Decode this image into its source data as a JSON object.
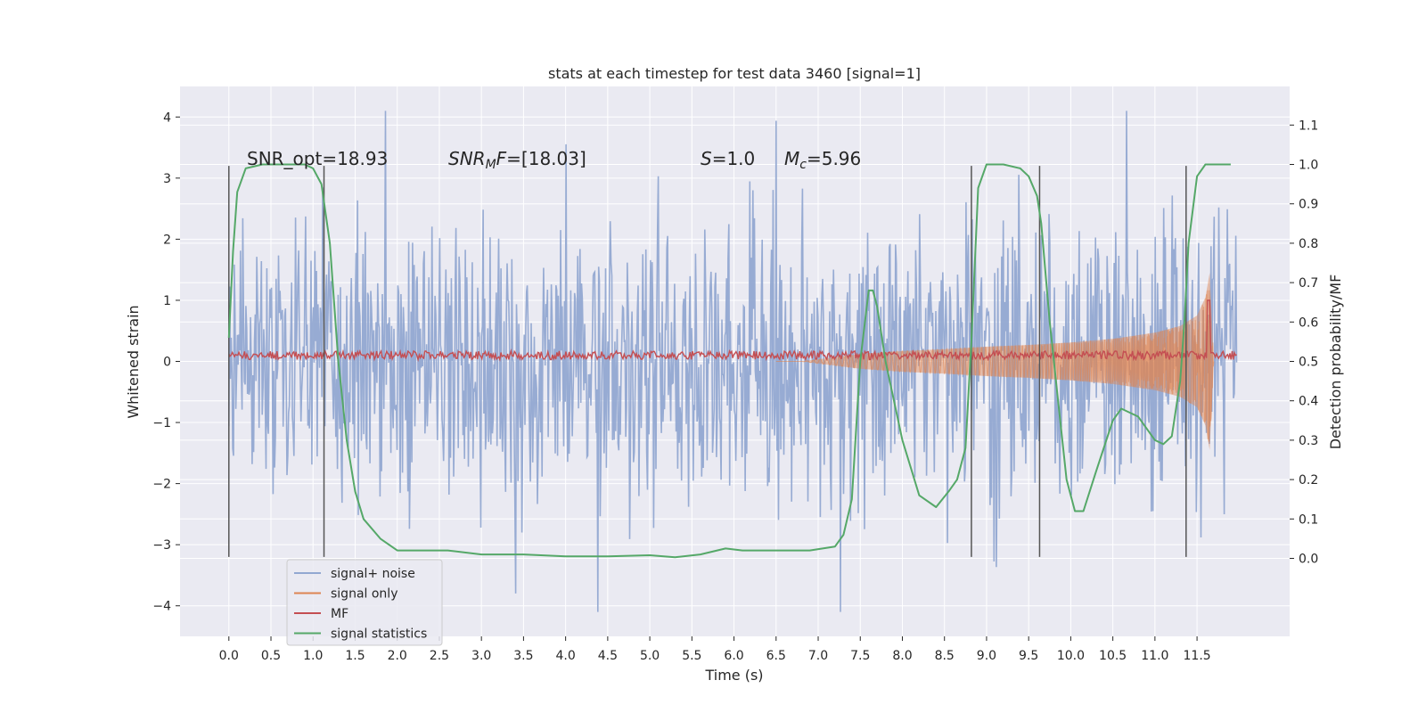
{
  "chart_data": {
    "type": "line",
    "title": "stats at each timestep for test data 3460 [signal=1]",
    "xlabel": "Time (s)",
    "ylabel_left": "Whitened strain",
    "ylabel_right": "Detection probability/MF",
    "xlim": [
      -0.58,
      12.6
    ],
    "ylim_left": [
      -4.5,
      4.5
    ],
    "ylim_right": [
      -0.198,
      1.198
    ],
    "x_ticks": [
      "0.0",
      "0.5",
      "1.0",
      "1.5",
      "2.0",
      "2.5",
      "3.0",
      "3.5",
      "4.0",
      "4.5",
      "5.0",
      "5.5",
      "6.0",
      "6.5",
      "7.0",
      "7.5",
      "8.0",
      "8.5",
      "9.0",
      "9.5",
      "10.0",
      "10.5",
      "11.0",
      "11.5"
    ],
    "y_left_ticks": [
      "−4",
      "−3",
      "−2",
      "−1",
      "0",
      "1",
      "2",
      "3",
      "4"
    ],
    "y_right_ticks": [
      "0.0",
      "0.1",
      "0.2",
      "0.3",
      "0.4",
      "0.5",
      "0.6",
      "0.7",
      "0.8",
      "0.9",
      "1.0",
      "1.1"
    ],
    "grid": true,
    "legend_position": "lower-left",
    "annotations": {
      "snr_opt": "SNR_opt=18.93",
      "snr_mf_base": "SNR",
      "snr_mf_sub": "M",
      "snr_mf_rest": "F=[18.03]",
      "s_base": "S",
      "s_rest": "=1.0",
      "mc_base": "M",
      "mc_sub": "c",
      "mc_rest": "=5.96"
    },
    "vertical_markers_x": [
      0.0,
      1.13,
      8.82,
      9.63,
      11.37
    ],
    "series": [
      {
        "name": "signal+ noise",
        "color": "#92a8d1",
        "axis": "left",
        "description": "noise envelope",
        "typical_amplitude": 1.3,
        "peak_amplitude": 4.1
      },
      {
        "name": "signal only",
        "color": "#dd8452",
        "axis": "left",
        "envelope": {
          "x": [
            6.8,
            7.5,
            8.0,
            8.5,
            9.0,
            9.5,
            10.0,
            10.5,
            11.0,
            11.3,
            11.5,
            11.6,
            11.65,
            11.7
          ],
          "amp": [
            0.0,
            0.12,
            0.17,
            0.2,
            0.24,
            0.27,
            0.31,
            0.37,
            0.47,
            0.58,
            0.75,
            1.05,
            1.45,
            0.0
          ]
        }
      },
      {
        "name": "MF",
        "color": "#c44e52",
        "axis": "left",
        "baseline": 0.1,
        "spike": {
          "x": 11.64,
          "y": 1.0
        }
      },
      {
        "name": "signal statistics",
        "color": "#55a868",
        "axis": "right",
        "x": [
          0.0,
          0.05,
          0.1,
          0.2,
          0.4,
          0.7,
          0.9,
          1.0,
          1.1,
          1.2,
          1.3,
          1.4,
          1.5,
          1.6,
          1.8,
          2.0,
          2.3,
          2.6,
          3.0,
          3.5,
          4.0,
          4.5,
          5.0,
          5.3,
          5.6,
          5.9,
          6.1,
          6.5,
          6.9,
          7.2,
          7.3,
          7.4,
          7.5,
          7.6,
          7.65,
          7.7,
          7.8,
          8.0,
          8.2,
          8.4,
          8.55,
          8.65,
          8.75,
          8.82,
          8.9,
          9.0,
          9.2,
          9.4,
          9.5,
          9.6,
          9.65,
          9.75,
          9.85,
          9.95,
          10.05,
          10.15,
          10.3,
          10.5,
          10.6,
          10.8,
          11.0,
          11.1,
          11.2,
          11.3,
          11.35,
          11.4,
          11.5,
          11.6,
          11.7,
          11.9
        ],
        "y": [
          0.56,
          0.78,
          0.93,
          0.99,
          1.0,
          1.0,
          1.0,
          0.99,
          0.95,
          0.8,
          0.5,
          0.3,
          0.17,
          0.1,
          0.05,
          0.02,
          0.02,
          0.02,
          0.01,
          0.01,
          0.005,
          0.005,
          0.008,
          0.003,
          0.01,
          0.025,
          0.02,
          0.02,
          0.02,
          0.03,
          0.06,
          0.15,
          0.5,
          0.68,
          0.68,
          0.64,
          0.5,
          0.3,
          0.16,
          0.13,
          0.17,
          0.2,
          0.28,
          0.55,
          0.94,
          1.0,
          1.0,
          0.99,
          0.97,
          0.92,
          0.85,
          0.6,
          0.4,
          0.2,
          0.12,
          0.12,
          0.22,
          0.35,
          0.38,
          0.36,
          0.3,
          0.29,
          0.31,
          0.45,
          0.6,
          0.8,
          0.97,
          1.0,
          1.0,
          1.0
        ]
      }
    ]
  }
}
